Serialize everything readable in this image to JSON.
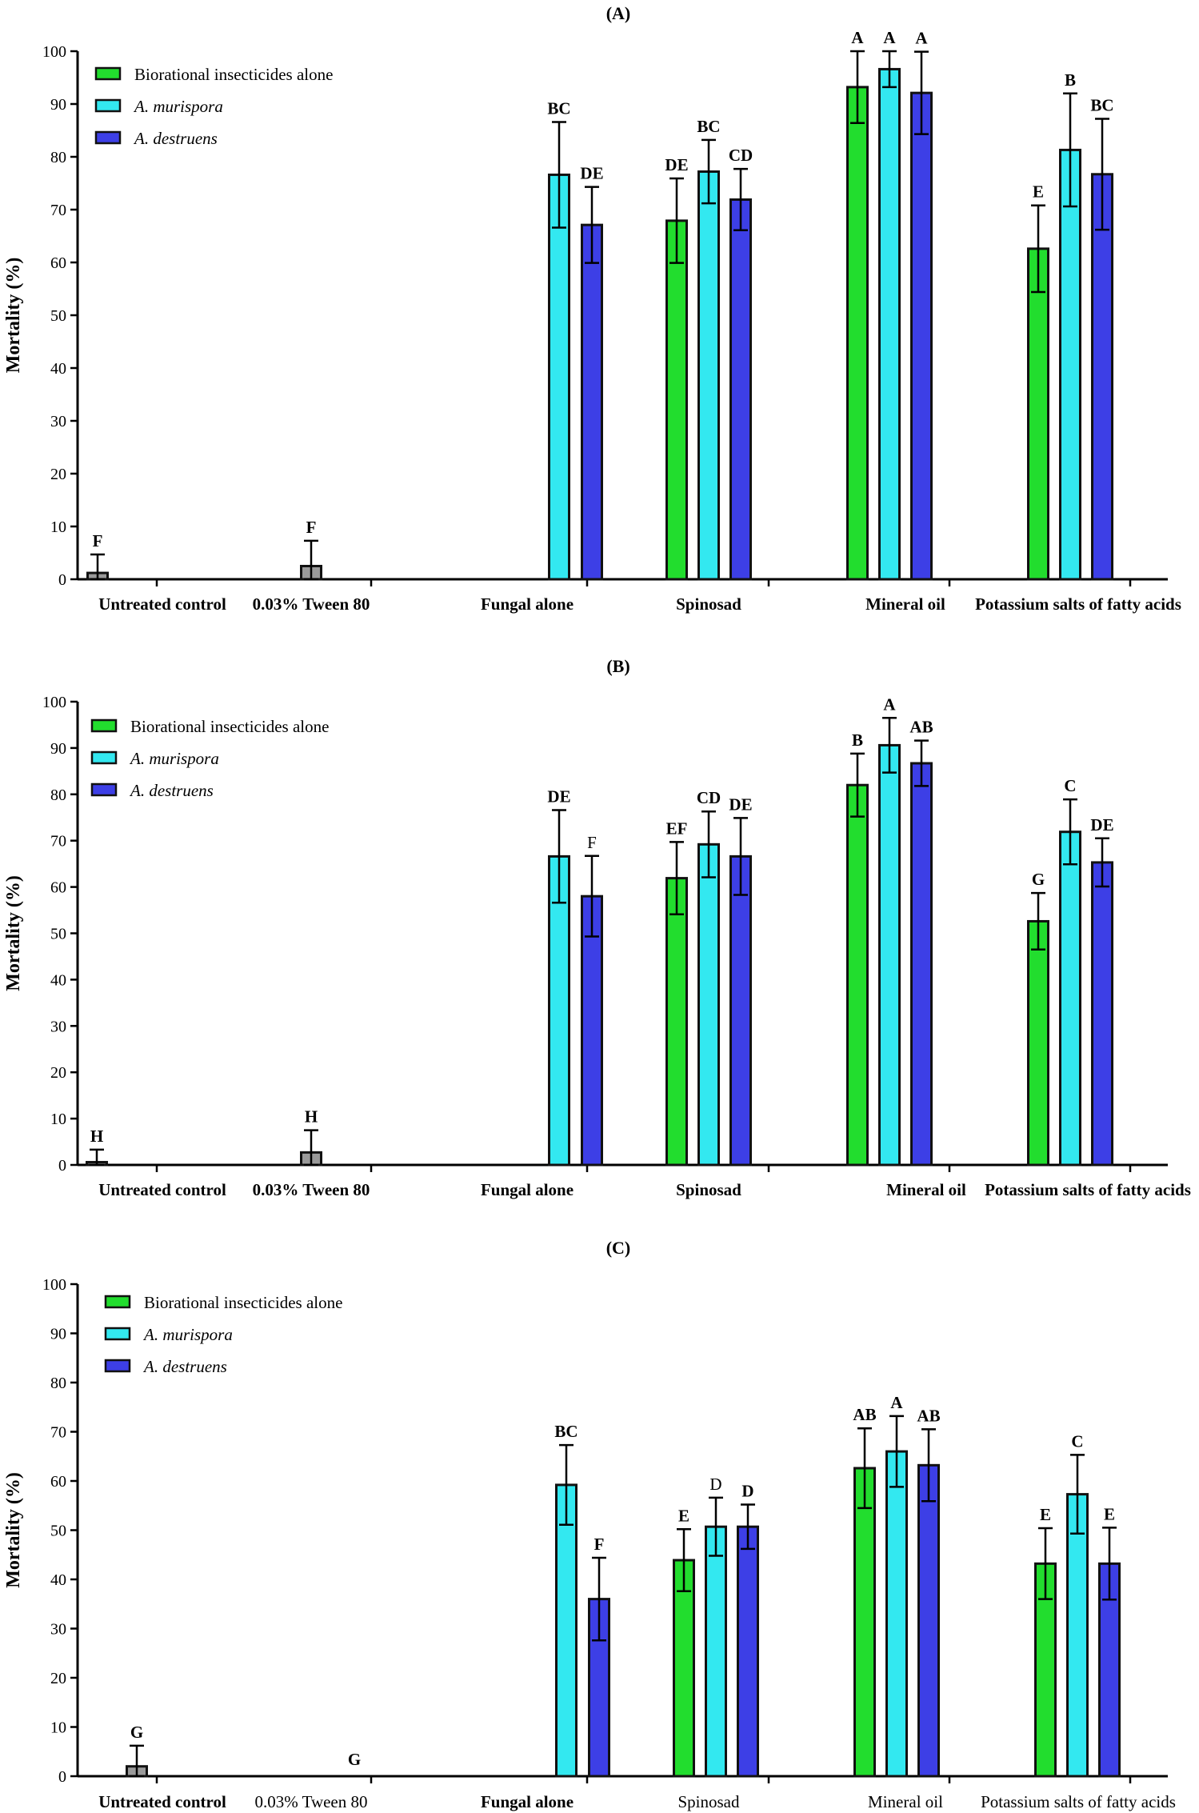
{
  "figure": {
    "type": "grouped-bar-figure",
    "legend_series": [
      "Biorational insecticides alone",
      "A. murispora",
      "A. destruens"
    ],
    "colors": {
      "biorational": "#22dd2e",
      "murispora": "#33e8f0",
      "destruens": "#3d3fe6",
      "control": "#9a9a9a"
    }
  },
  "chart_data": [
    {
      "type": "bar",
      "title": "(A)",
      "ylabel": "Mortality (%)",
      "xlabel": "",
      "ylim": [
        0,
        100
      ],
      "yticks": [
        "0",
        "10",
        "20",
        "30",
        "40",
        "50",
        "60",
        "70",
        "80",
        "90",
        "100"
      ],
      "legend": [
        "Biorational insecticides alone",
        "A. murispora",
        "A. destruens"
      ],
      "categories": [
        "Untreated control",
        "0.03% Tween 80",
        "Fungal alone",
        "Spinosad",
        "Mineral oil",
        "Potassium salts of fatty acids"
      ],
      "bars": [
        {
          "category": "Untreated control",
          "series": "Control",
          "value": 1.2,
          "error": 3.5,
          "label": "F"
        },
        {
          "category": "0.03% Tween 80",
          "series": "Control",
          "value": 2.5,
          "error": 4.8,
          "label": "F"
        },
        {
          "category": "Fungal alone",
          "series": "A. murispora",
          "value": 76.6,
          "error": 10.0,
          "label": "BC"
        },
        {
          "category": "Fungal alone",
          "series": "A. destruens",
          "value": 67.1,
          "error": 7.2,
          "label": "DE"
        },
        {
          "category": "Spinosad",
          "series": "Biorational insecticides alone",
          "value": 67.9,
          "error": 8.0,
          "label": "DE"
        },
        {
          "category": "Spinosad",
          "series": "A. murispora",
          "value": 77.2,
          "error": 6.0,
          "label": "BC"
        },
        {
          "category": "Spinosad",
          "series": "A. destruens",
          "value": 71.9,
          "error": 5.8,
          "label": "CD"
        },
        {
          "category": "Mineral oil",
          "series": "Biorational insecticides alone",
          "value": 93.2,
          "error": 6.8,
          "label": "A"
        },
        {
          "category": "Mineral oil",
          "series": "A. murispora",
          "value": 96.6,
          "error": 3.4,
          "label": "A"
        },
        {
          "category": "Mineral oil",
          "series": "A. destruens",
          "value": 92.1,
          "error": 7.8,
          "label": "A"
        },
        {
          "category": "Potassium salts of fatty acids",
          "series": "Biorational insecticides alone",
          "value": 62.6,
          "error": 8.2,
          "label": "E"
        },
        {
          "category": "Potassium salts of fatty acids",
          "series": "A. murispora",
          "value": 81.3,
          "error": 10.7,
          "label": "B"
        },
        {
          "category": "Potassium salts of fatty acids",
          "series": "A. destruens",
          "value": 76.7,
          "error": 10.5,
          "label": "BC"
        }
      ]
    },
    {
      "type": "bar",
      "title": "(B)",
      "ylabel": "Mortality (%)",
      "xlabel": "",
      "ylim": [
        0,
        100
      ],
      "yticks": [
        "0",
        "10",
        "20",
        "30",
        "40",
        "50",
        "60",
        "70",
        "80",
        "90",
        "100"
      ],
      "legend": [
        "Biorational insecticides alone",
        "A. murispora",
        "A. destruens"
      ],
      "categories": [
        "Untreated control",
        "0.03% Tween 80",
        "Fungal alone",
        "Spinosad",
        "Mineral oil",
        "Potassium salts of fatty acids"
      ],
      "bars": [
        {
          "category": "Untreated control",
          "series": "Control",
          "value": 0.6,
          "error": 2.7,
          "label": "H"
        },
        {
          "category": "0.03% Tween 80",
          "series": "Control",
          "value": 2.7,
          "error": 4.8,
          "label": "H"
        },
        {
          "category": "Fungal alone",
          "series": "A. murispora",
          "value": 66.6,
          "error": 10.0,
          "label": "DE"
        },
        {
          "category": "Fungal alone",
          "series": "A. destruens",
          "value": 58.0,
          "error": 8.7,
          "label": "F",
          "plain": true
        },
        {
          "category": "Spinosad",
          "series": "Biorational insecticides alone",
          "value": 61.9,
          "error": 7.8,
          "label": "EF"
        },
        {
          "category": "Spinosad",
          "series": "A. murispora",
          "value": 69.2,
          "error": 7.1,
          "label": "CD"
        },
        {
          "category": "Spinosad",
          "series": "A. destruens",
          "value": 66.6,
          "error": 8.3,
          "label": "DE"
        },
        {
          "category": "Mineral oil",
          "series": "Biorational insecticides alone",
          "value": 82.0,
          "error": 6.8,
          "label": "B"
        },
        {
          "category": "Mineral oil",
          "series": "A. murispora",
          "value": 90.6,
          "error": 5.9,
          "label": "A"
        },
        {
          "category": "Mineral oil",
          "series": "A. destruens",
          "value": 86.7,
          "error": 4.9,
          "label": "AB"
        },
        {
          "category": "Potassium salts of fatty acids",
          "series": "Biorational insecticides alone",
          "value": 52.6,
          "error": 6.1,
          "label": "G"
        },
        {
          "category": "Potassium salts of fatty acids",
          "series": "A. murispora",
          "value": 71.9,
          "error": 7.0,
          "label": "C"
        },
        {
          "category": "Potassium salts of fatty acids",
          "series": "A. destruens",
          "value": 65.3,
          "error": 5.2,
          "label": "DE"
        }
      ]
    },
    {
      "type": "bar",
      "title": "(C)",
      "ylabel": "Mortality (%)",
      "xlabel": "",
      "ylim": [
        0,
        100
      ],
      "yticks": [
        "0",
        "10",
        "20",
        "30",
        "40",
        "50",
        "60",
        "70",
        "80",
        "90",
        "100"
      ],
      "legend": [
        "Biorational insecticides  alone",
        "A. murispora",
        "A. destruens"
      ],
      "categories": [
        "Untreated control",
        "0.03% Tween 80",
        "Fungal alone",
        "Spinosad",
        "Mineral oil",
        "Potassium salts of fatty acids"
      ],
      "category_bold": [
        true,
        false,
        true,
        false,
        false,
        false
      ],
      "bars": [
        {
          "category": "Untreated control",
          "series": "Control",
          "value": 2.0,
          "error": 4.2,
          "label": "G"
        },
        {
          "category": "0.03% Tween 80",
          "series": "Control",
          "value": 0.0,
          "error": 0.0,
          "label": "G"
        },
        {
          "category": "Fungal alone",
          "series": "A. murispora",
          "value": 59.2,
          "error": 8.1,
          "label": "BC"
        },
        {
          "category": "Fungal alone",
          "series": "A. destruens",
          "value": 36.0,
          "error": 8.4,
          "label": "F"
        },
        {
          "category": "Spinosad",
          "series": "Biorational insecticides alone",
          "value": 43.9,
          "error": 6.3,
          "label": "E"
        },
        {
          "category": "Spinosad",
          "series": "A. murispora",
          "value": 50.7,
          "error": 5.9,
          "label": "D",
          "plain": true
        },
        {
          "category": "Spinosad",
          "series": "A. destruens",
          "value": 50.7,
          "error": 4.5,
          "label": "D"
        },
        {
          "category": "Mineral oil",
          "series": "Biorational insecticides alone",
          "value": 62.6,
          "error": 8.1,
          "label": "AB"
        },
        {
          "category": "Mineral oil",
          "series": "A. murispora",
          "value": 66.0,
          "error": 7.2,
          "label": "A"
        },
        {
          "category": "Mineral oil",
          "series": "A. destruens",
          "value": 63.2,
          "error": 7.3,
          "label": "AB"
        },
        {
          "category": "Potassium salts of fatty acids",
          "series": "Biorational insecticides alone",
          "value": 43.2,
          "error": 7.2,
          "label": "E"
        },
        {
          "category": "Potassium salts of fatty acids",
          "series": "A. murispora",
          "value": 57.3,
          "error": 8.0,
          "label": "C"
        },
        {
          "category": "Potassium salts of fatty acids",
          "series": "A. destruens",
          "value": 43.2,
          "error": 7.3,
          "label": "E"
        }
      ]
    }
  ]
}
